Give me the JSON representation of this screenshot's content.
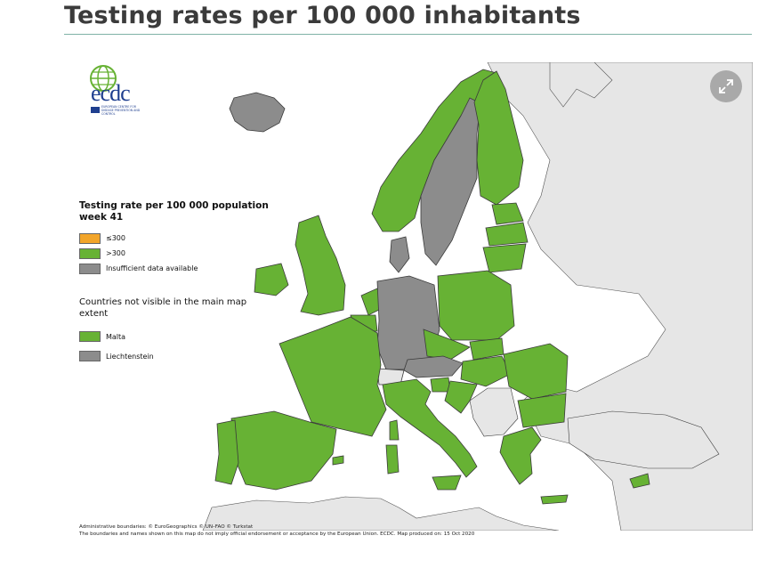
{
  "title": "Testing rates per 100 000 inhabitants",
  "logo": {
    "wordmark": "ecdc",
    "subtitle": "EUROPEAN CENTRE FOR DISEASE PREVENTION AND CONTROL"
  },
  "legend": {
    "title": "Testing rate per 100 000 population week 41",
    "items": [
      {
        "label": "≤300",
        "color": "#f2a52a"
      },
      {
        "label": ">300",
        "color": "#67b234"
      },
      {
        "label": "Insufficient data available",
        "color": "#8c8c8c"
      }
    ]
  },
  "not_visible": {
    "title": "Countries not visible in the main map extent",
    "items": [
      {
        "label": "Malta",
        "color": "#67b234"
      },
      {
        "label": "Liechtenstein",
        "color": "#8c8c8c"
      }
    ]
  },
  "colors": {
    "above": "#67b234",
    "below": "#f2a52a",
    "insufficient": "#8c8c8c",
    "non_eu": "#e6e6e6",
    "border": "#3a3a3a"
  },
  "footer": {
    "line1": "Administrative boundaries: © EuroGeographics © UN–FAO © Turkstat",
    "line2": "The boundaries and names shown on this map do not imply official endorsement or acceptance by the European Union. ECDC. Map produced on: 15 Oct 2020"
  },
  "controls": {
    "expand_icon": "expand-icon"
  }
}
